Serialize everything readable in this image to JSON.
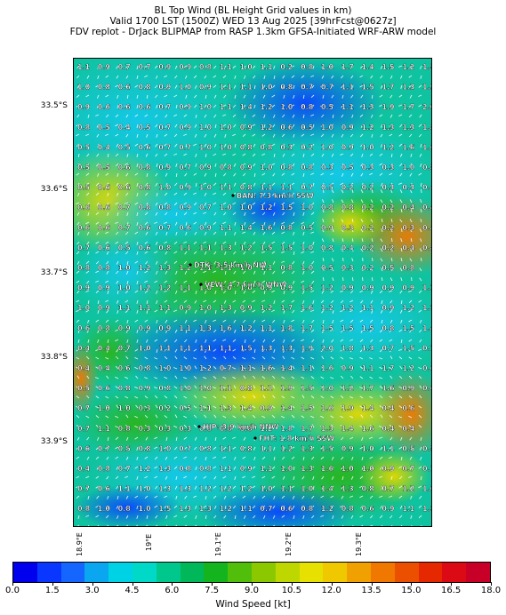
{
  "title": {
    "line1": "BL Top Wind (BL Height Grid values in km)",
    "line2": "Valid 1700 LST (1500Z) WED 13 Aug 2025 [39hrFcst@0627z]",
    "line3": "FDV replot - DrJack BLIPMAP from RASP 1.3km GFSA-Initiated WRF-ARW model"
  },
  "lat_labels": [
    "33.5°S",
    "33.6°S",
    "33.7°S",
    "33.8°S",
    "33.9°S"
  ],
  "lon_labels": [
    "18.9°E",
    "19°E",
    "19.1°E",
    "19.2°E",
    "19.3°E"
  ],
  "stations": [
    {
      "label": "BAN: 7.3 km/h SSW"
    },
    {
      "label": "DTK: 3.5 km/h NW"
    },
    {
      "label": "VEW: 4.7 km/h WNW"
    },
    {
      "label": "HIP: 3.9 km/h NNW"
    },
    {
      "label": "FHT: 1.8 km/h SSW"
    }
  ],
  "grid_values": [
    [
      "1.1",
      "0.9",
      "0.7",
      "0.7",
      "0.9",
      "0.9",
      "0.8",
      "1.1",
      "1.0",
      "1.1",
      "0.2",
      "0.8",
      "1.0",
      "1.7",
      "1.4",
      "1.5",
      "1.2",
      "1.5"
    ],
    [
      "1.0",
      "0.8",
      "0.6",
      "0.8",
      "0.9",
      "1.0",
      "0.9",
      "1.1",
      "1.1",
      "1.0",
      "0.8",
      "0.7",
      "0.7",
      "1.1",
      "1.5",
      "1.7",
      "1.3",
      "1.9"
    ],
    [
      "0.9",
      "0.6",
      "0.6",
      "0.6",
      "0.7",
      "0.9",
      "1.0",
      "1.1",
      "1.4",
      "1.2",
      "1.0",
      "0.8",
      "0.5",
      "1.1",
      "1.3",
      "1.9",
      "1.7",
      "2.0"
    ],
    [
      "0.8",
      "0.5",
      "0.4",
      "0.5",
      "0.7",
      "0.9",
      "1.0",
      "1.0",
      "0.9",
      "1.2",
      "0.6",
      "0.5",
      "1.0",
      "0.9",
      "1.2",
      "1.3",
      "1.3",
      "1.8"
    ],
    [
      "0.5",
      "0.4",
      "0.5",
      "0.6",
      "0.7",
      "0.7",
      "1.0",
      "1.0",
      "0.8",
      "0.8",
      "0.3",
      "0.2",
      "1.0",
      "0.9",
      "1.0",
      "1.2",
      "1.6",
      "1.6"
    ],
    [
      "0.5",
      "0.5",
      "0.6",
      "0.8",
      "0.9",
      "0.7",
      "0.9",
      "0.8",
      "0.9",
      "1.0",
      "0.8",
      "0.8",
      "0.3",
      "0.5",
      "0.3",
      "0.3",
      "1.0",
      "0.8"
    ],
    [
      "0.5",
      "0.6",
      "0.6",
      "0.8",
      "1.0",
      "0.9",
      "1.0",
      "1.1",
      "0.8",
      "1.1",
      "1.1",
      "0.7",
      "0.5",
      "0.2",
      "0.2",
      "0.3",
      "0.3",
      "0.4"
    ],
    [
      "0.6",
      "0.6",
      "0.7",
      "0.8",
      "0.8",
      "0.9",
      "0.7",
      "1.0",
      "1.0",
      "1.2",
      "1.5",
      "1.0",
      "0.8",
      "0.8",
      "0.2",
      "0.2",
      "0.4",
      "0.4"
    ],
    [
      "0.6",
      "0.6",
      "0.7",
      "0.6",
      "0.7",
      "0.6",
      "0.9",
      "1.1",
      "1.4",
      "1.6",
      "0.8",
      "0.5",
      "0.9",
      "0.3",
      "0.2",
      "0.2",
      "0.3",
      "0.4"
    ],
    [
      "0.7",
      "0.6",
      "0.5",
      "0.6",
      "0.8",
      "1.1",
      "1.1",
      "1.3",
      "1.2",
      "1.5",
      "1.5",
      "1.0",
      "0.8",
      "0.4",
      "0.2",
      "0.2",
      "0.4",
      "0.8"
    ],
    [
      "0.8",
      "0.8",
      "1.0",
      "1.2",
      "1.3",
      "1.2",
      "1.1",
      "1.1",
      "1.0",
      "1.1",
      "0.8",
      "1.0",
      "0.5",
      "0.3",
      "0.2",
      "0.5",
      "0.8"
    ],
    [
      "0.9",
      "0.9",
      "1.0",
      "1.2",
      "1.2",
      "1.1",
      "1.0",
      "1.0",
      "1.0",
      "0.9",
      "0.9",
      "1.5",
      "1.2",
      "0.9",
      "0.9",
      "0.9",
      "0.9",
      "1.1"
    ],
    [
      "1.0",
      "0.9",
      "1.1",
      "1.1",
      "1.1",
      "0.9",
      "1.0",
      "1.3",
      "0.9",
      "1.2",
      "1.7",
      "1.6",
      "1.2",
      "1.2",
      "1.1",
      "0.9",
      "1.2",
      "1.2"
    ],
    [
      "0.6",
      "0.8",
      "0.9",
      "0.9",
      "0.9",
      "1.1",
      "1.3",
      "1.6",
      "1.2",
      "1.1",
      "1.8",
      "1.7",
      "1.5",
      "1.5",
      "1.5",
      "0.8",
      "1.5",
      "1.4"
    ],
    [
      "0.4",
      "0.4",
      "0.7",
      "1.0",
      "1.1",
      "1.1",
      "1.1",
      "1.1",
      "1.5",
      "1.3",
      "1.3",
      "1.9",
      "2.0",
      "1.8",
      "1.3",
      "0.7",
      "1.5",
      "0.7"
    ],
    [
      "0.4",
      "0.4",
      "0.6",
      "0.8",
      "1.0",
      "1.0",
      "1.2",
      "0.7",
      "1.1",
      "1.6",
      "1.4",
      "1.1",
      "1.6",
      "0.9",
      "1.1",
      "1.7",
      "1.2",
      "0.6"
    ],
    [
      "0.5",
      "0.6",
      "0.8",
      "0.9",
      "0.8",
      "1.0",
      "1.0",
      "1.1",
      "0.8",
      "1.1",
      "1.9",
      "1.5",
      "1.0",
      "1.2",
      "1.7",
      "1.6",
      "0.9",
      "0.6"
    ],
    [
      "0.7",
      "1.0",
      "1.0",
      "0.3",
      "0.2",
      "0.5",
      "1.1",
      "1.3",
      "1.4",
      "0.9",
      "1.4",
      "1.5",
      "1.6",
      "1.9",
      "1.4",
      "0.4",
      "0.6"
    ],
    [
      "0.7",
      "1.1",
      "0.8",
      "0.3",
      "0.3",
      "0.3",
      "0.8",
      "0.8",
      "0.8",
      "1.2",
      "1.8",
      "1.7",
      "1.3",
      "1.4",
      "1.6",
      "0.4",
      "0.4"
    ],
    [
      "0.6",
      "0.7",
      "0.5",
      "0.8",
      "1.0",
      "0.7",
      "0.8",
      "1.1",
      "0.8",
      "1.1",
      "1.2",
      "1.3",
      "1.5",
      "0.9",
      "1.0",
      "1.1",
      "0.5",
      "0.5"
    ],
    [
      "0.4",
      "0.8",
      "0.7",
      "1.2",
      "1.3",
      "0.8",
      "0.8",
      "1.1",
      "0.9",
      "1.1",
      "1.0",
      "1.3",
      "1.6",
      "1.0",
      "1.0",
      "0.9",
      "0.7",
      "0.7"
    ],
    [
      "0.7",
      "0.6",
      "1.1",
      "1.0",
      "1.3",
      "1.3",
      "1.2",
      "1.2",
      "1.2",
      "1.0",
      "1.1",
      "1.0",
      "1.4",
      "1.3",
      "0.8",
      "0.7",
      "1.2",
      "1.6"
    ],
    [
      "0.8",
      "1.0",
      "0.8",
      "1.0",
      "1.5",
      "1.3",
      "1.3",
      "1.2",
      "1.1",
      "0.7",
      "0.6",
      "0.8",
      "1.2",
      "0.8",
      "0.6",
      "0.9",
      "1.1",
      "1.3"
    ]
  ],
  "colorbar": {
    "label": "Wind Speed [kt]",
    "ticks": [
      "0.0",
      "1.5",
      "3.0",
      "4.5",
      "6.0",
      "7.5",
      "9.0",
      "10.5",
      "12.0",
      "13.5",
      "15.0",
      "16.5",
      "18.0"
    ],
    "colors": [
      "#0000ee",
      "#0a37ff",
      "#1466ff",
      "#0aa6f0",
      "#00d2e6",
      "#00d9c8",
      "#00c88c",
      "#00b85a",
      "#14b41e",
      "#50be0a",
      "#8cc800",
      "#bed700",
      "#e6e100",
      "#f0c800",
      "#f0a000",
      "#f07800",
      "#eb5000",
      "#e62800",
      "#dc0a14",
      "#c80028"
    ]
  }
}
